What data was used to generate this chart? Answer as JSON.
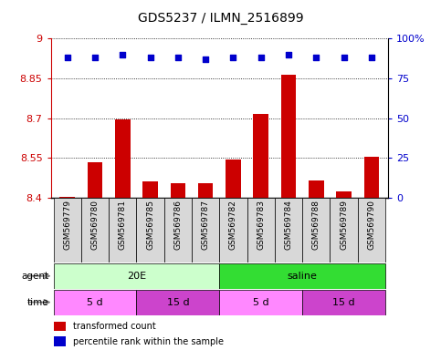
{
  "title": "GDS5237 / ILMN_2516899",
  "samples": [
    "GSM569779",
    "GSM569780",
    "GSM569781",
    "GSM569785",
    "GSM569786",
    "GSM569787",
    "GSM569782",
    "GSM569783",
    "GSM569784",
    "GSM569788",
    "GSM569789",
    "GSM569790"
  ],
  "bar_values": [
    8.403,
    8.535,
    8.695,
    8.46,
    8.455,
    8.455,
    8.545,
    8.715,
    8.865,
    8.465,
    8.425,
    8.555
  ],
  "percentile_values": [
    88,
    88,
    90,
    88,
    88,
    87,
    88,
    88,
    90,
    88,
    88,
    88
  ],
  "bar_color": "#cc0000",
  "percentile_color": "#0000cc",
  "ylim_left": [
    8.4,
    9.0
  ],
  "ylim_right": [
    0,
    100
  ],
  "yticks_left": [
    8.4,
    8.55,
    8.7,
    8.85,
    9.0
  ],
  "yticks_right": [
    0,
    25,
    50,
    75,
    100
  ],
  "ytick_labels_left": [
    "8.4",
    "8.55",
    "8.7",
    "8.85",
    "9"
  ],
  "ytick_labels_right": [
    "0",
    "25",
    "50",
    "75",
    "100%"
  ],
  "agent_groups": [
    {
      "label": "20E",
      "start": 0,
      "end": 6,
      "color": "#ccffcc"
    },
    {
      "label": "saline",
      "start": 6,
      "end": 12,
      "color": "#33dd33"
    }
  ],
  "time_groups": [
    {
      "label": "5 d",
      "start": 0,
      "end": 3,
      "color": "#ff88ff"
    },
    {
      "label": "15 d",
      "start": 3,
      "end": 6,
      "color": "#cc44cc"
    },
    {
      "label": "5 d",
      "start": 6,
      "end": 9,
      "color": "#ff88ff"
    },
    {
      "label": "15 d",
      "start": 9,
      "end": 12,
      "color": "#cc44cc"
    }
  ],
  "legend_bar_label": "transformed count",
  "legend_pct_label": "percentile rank within the sample",
  "agent_label": "agent",
  "time_label": "time",
  "tick_label_color_left": "#cc0000",
  "tick_label_color_right": "#0000cc",
  "bar_bottom": 8.4,
  "sample_box_color": "#d8d8d8"
}
